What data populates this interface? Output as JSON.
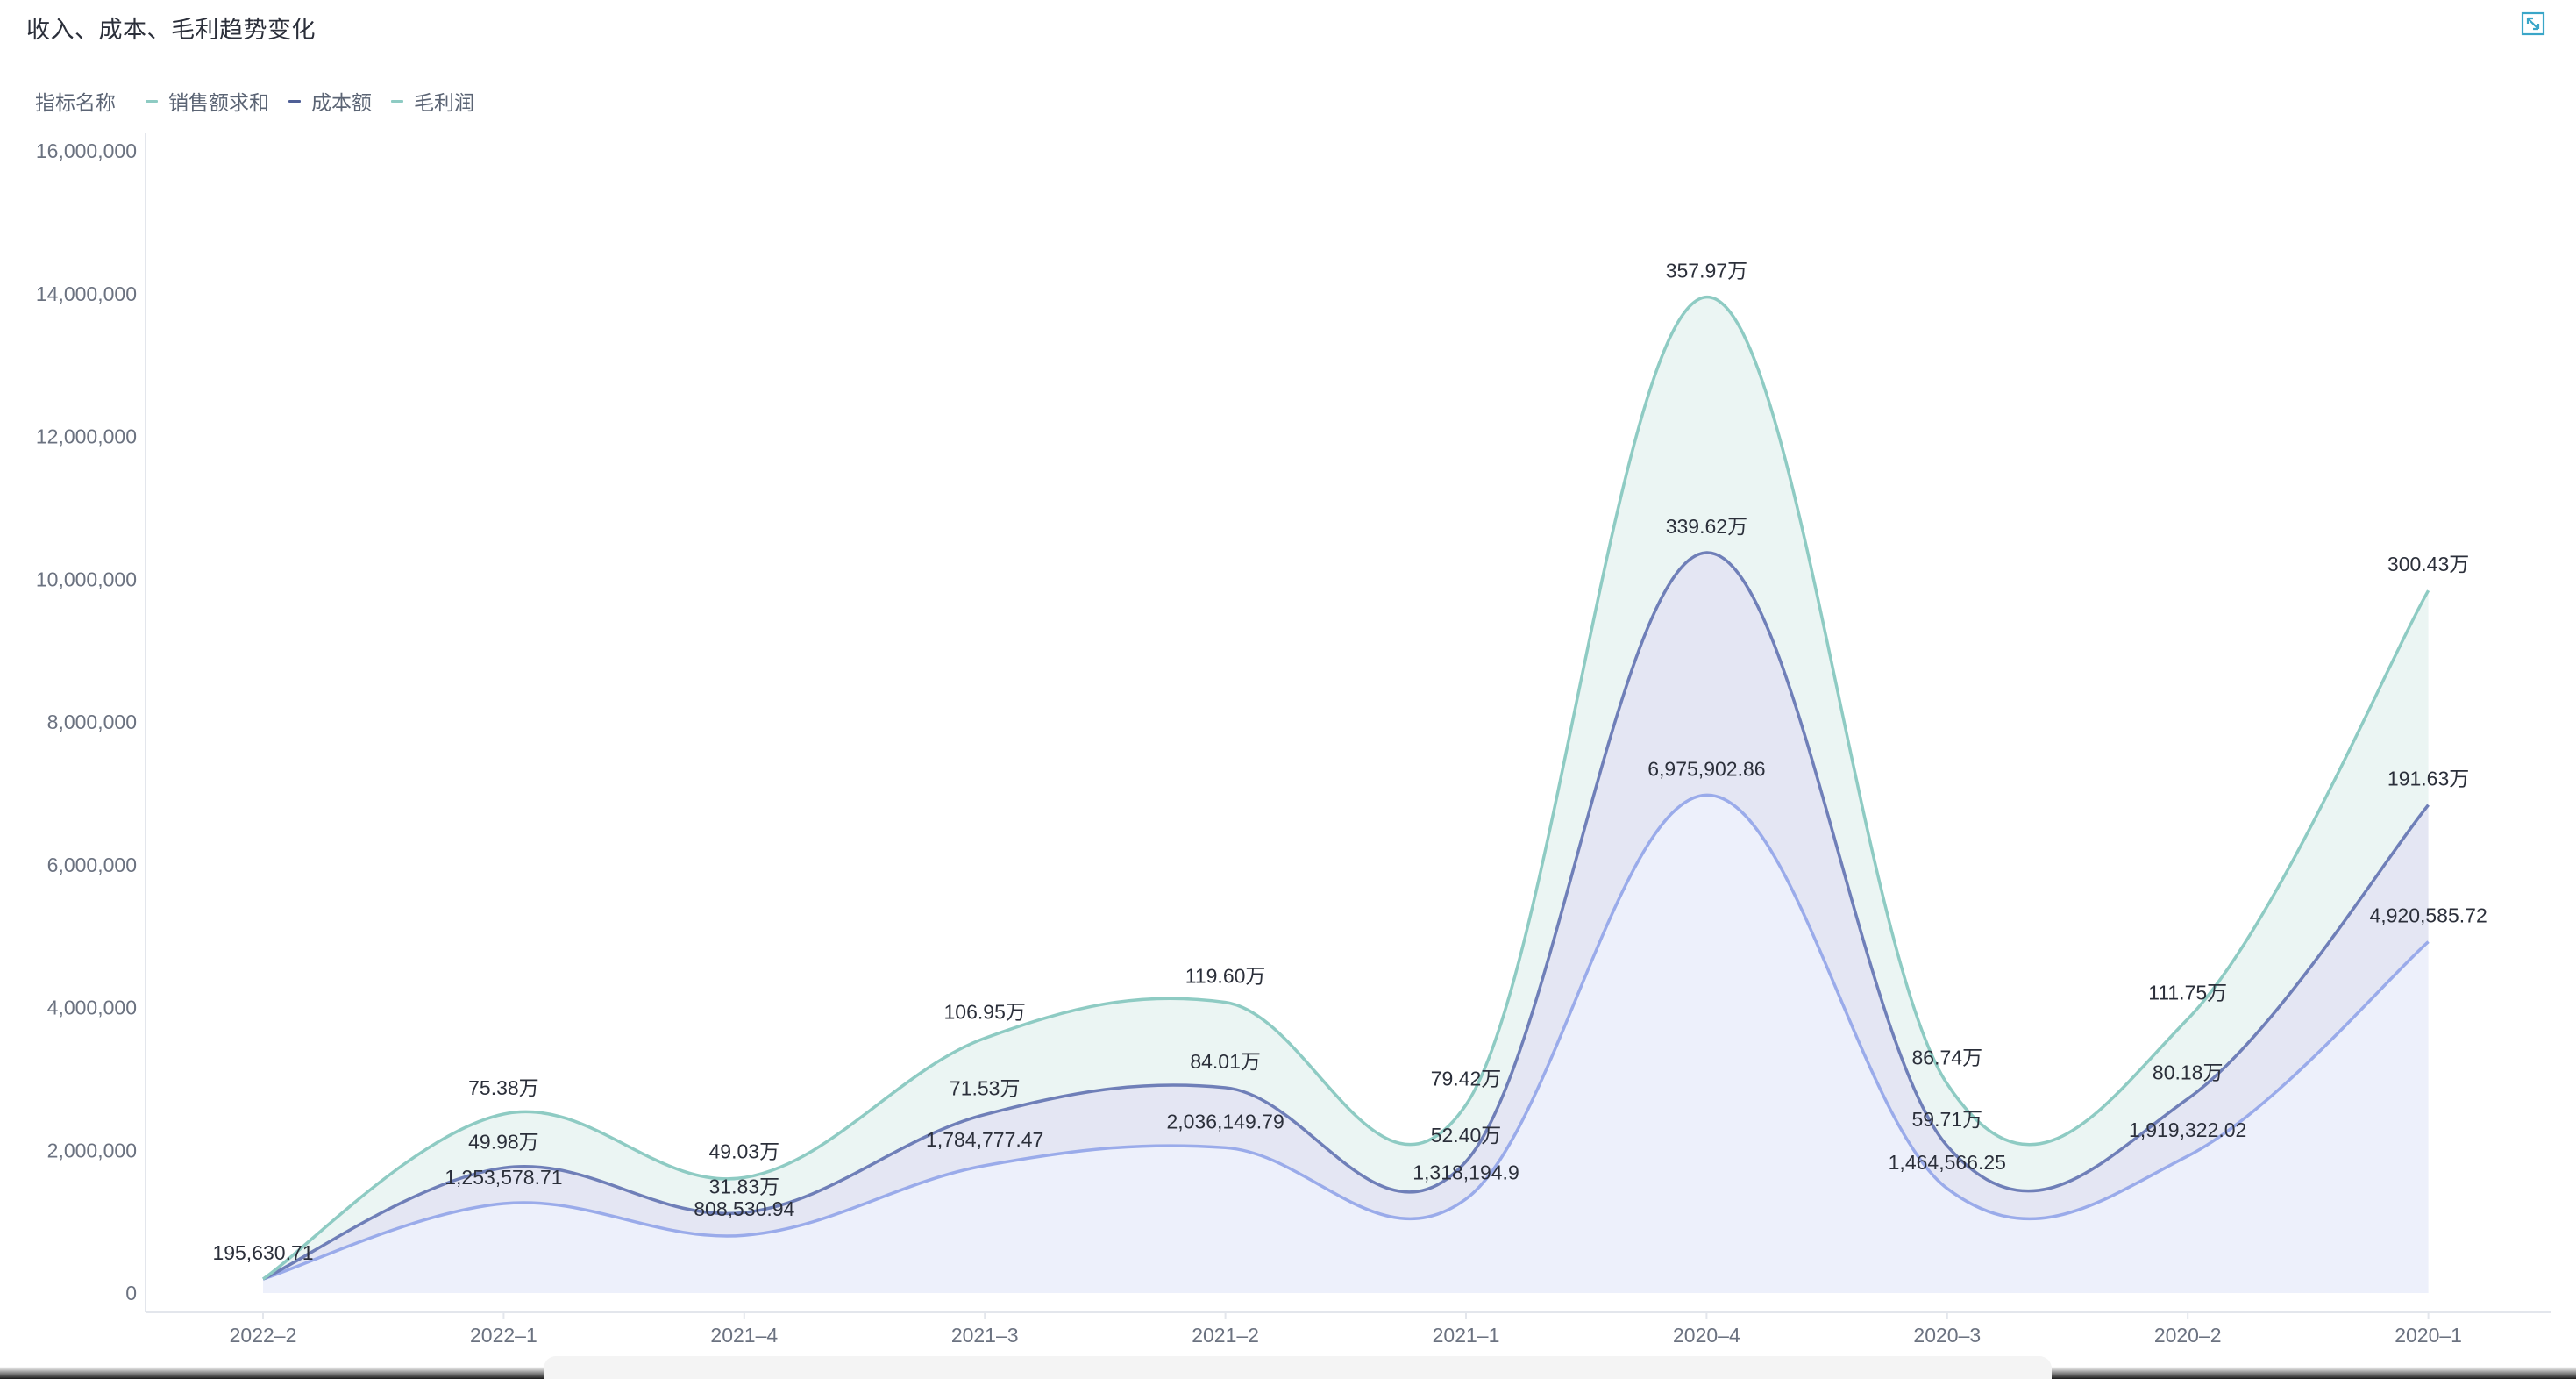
{
  "header": {
    "title": "收入、成本、毛利趋势变化",
    "expand_icon": "expand-icon"
  },
  "legend": {
    "title": "指标名称",
    "items": [
      {
        "name": "销售额求和",
        "color": "#8ecbc3"
      },
      {
        "name": "成本额",
        "color": "#6f7fb8"
      },
      {
        "name": "毛利润",
        "color": "#8ecbc3"
      }
    ]
  },
  "chart_data": {
    "type": "area",
    "stacked": true,
    "smooth": true,
    "title": "收入、成本、毛利趋势变化",
    "xlabel": "",
    "ylabel": "",
    "ylim": [
      0,
      16000000
    ],
    "yticks": [
      0,
      2000000,
      4000000,
      6000000,
      8000000,
      10000000,
      12000000,
      14000000,
      16000000
    ],
    "ytick_labels": [
      "0",
      "2,000,000",
      "4,000,000",
      "6,000,000",
      "8,000,000",
      "10,000,000",
      "12,000,000",
      "14,000,000",
      "16,000,000"
    ],
    "categories": [
      "2022-2",
      "2022-1",
      "2021-4",
      "2021-3",
      "2021-2",
      "2021-1",
      "2020-4",
      "2020-3",
      "2020-2",
      "2020-1"
    ],
    "category_labels": [
      "2022–2",
      "2022–1",
      "2021–4",
      "2021–3",
      "2021–2",
      "2021–1",
      "2020–4",
      "2020–3",
      "2020–2",
      "2020–1"
    ],
    "series": [
      {
        "name": "销售额求和",
        "line_color": "#9aabea",
        "fill_color": "#edf0fb",
        "values": [
          195630.71,
          1253578.71,
          808530.94,
          1784777.47,
          2036149.79,
          1318194.9,
          6975902.86,
          1464566.25,
          1919322.02,
          4920585.72
        ],
        "labels": [
          "195,630.71",
          "1,253,578.71",
          "808,530.94",
          "1,784,777.47",
          "2,036,149.79",
          "1,318,194.9",
          "6,975,902.86",
          "1,464,566.25",
          "1,919,322.02",
          "4,920,585.72"
        ]
      },
      {
        "name": "成本额",
        "line_color": "#6f7fb8",
        "fill_color": "#e4e6f3",
        "values": [
          0,
          499800,
          318300,
          715300,
          840100,
          524000,
          3396200,
          597100,
          801800,
          1916300
        ],
        "labels": [
          "",
          "49.98万",
          "31.83万",
          "71.53万",
          "84.01万",
          "52.40万",
          "339.62万",
          "59.71万",
          "80.18万",
          "191.63万"
        ]
      },
      {
        "name": "毛利润",
        "line_color": "#8ecbc3",
        "fill_color": "#ebf5f3",
        "values": [
          0,
          753800,
          490300,
          1069500,
          1196000,
          794200,
          3579700,
          867400,
          1117500,
          3004300
        ],
        "labels": [
          "",
          "75.38万",
          "49.03万",
          "106.95万",
          "119.60万",
          "79.42万",
          "357.97万",
          "86.74万",
          "111.75万",
          "300.43万"
        ]
      }
    ],
    "grid": false,
    "legend_position": "top-left"
  }
}
